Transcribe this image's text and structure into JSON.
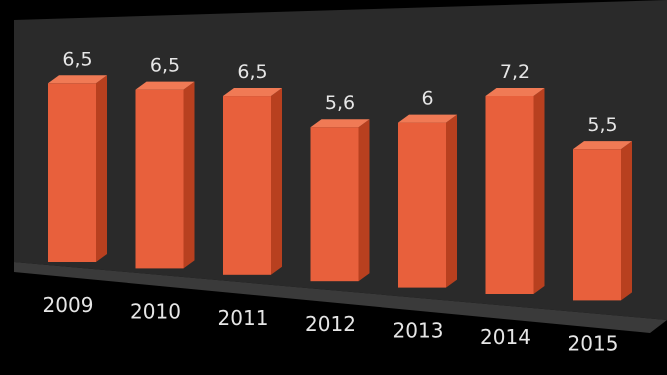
{
  "chart_data": {
    "type": "bar",
    "categories": [
      "2009",
      "2010",
      "2011",
      "2012",
      "2013",
      "2014",
      "2015"
    ],
    "values": [
      6.5,
      6.5,
      6.5,
      5.6,
      6,
      7.2,
      5.5
    ],
    "data_labels": [
      "6,5",
      "6,5",
      "6,5",
      "5,6",
      "6",
      "7,2",
      "5,5"
    ],
    "title": "",
    "xlabel": "",
    "ylabel": "",
    "ylim": [
      0,
      8
    ],
    "grid": false,
    "legend": "none",
    "style": "3d-perspective",
    "colors": {
      "background": "#000000",
      "wall": "#2b2b2b",
      "floor": "#3a3a3a",
      "bar_front": "#e8603c",
      "bar_side": "#b8401f",
      "bar_top": "#f07a55",
      "text": "#e6e6e6"
    }
  }
}
